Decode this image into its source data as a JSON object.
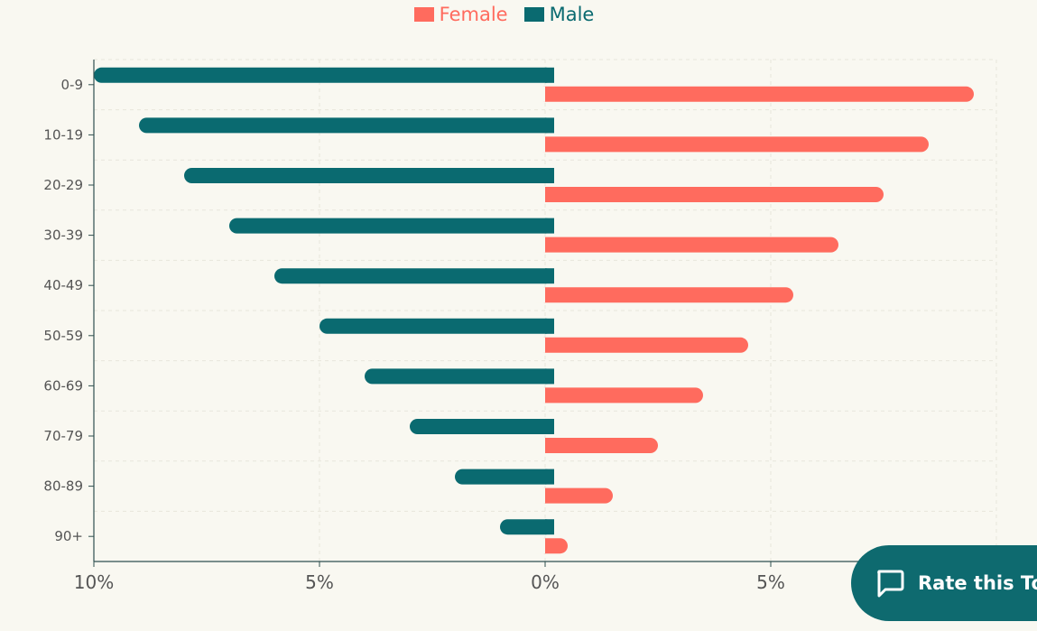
{
  "legend": {
    "female_label": "Female",
    "male_label": "Male"
  },
  "colors": {
    "female": "#ff6b5e",
    "male": "#0a6a70",
    "axis": "#2f4f4f",
    "grid": "#e8e6dc",
    "background": "#f9f8f1"
  },
  "chart_data": {
    "type": "bar",
    "orientation": "horizontal",
    "title": "",
    "xlabel": "",
    "ylabel": "",
    "categories": [
      "0-9",
      "10-19",
      "20-29",
      "30-39",
      "40-49",
      "50-59",
      "60-69",
      "70-79",
      "80-89",
      "90+"
    ],
    "series": [
      {
        "name": "Male",
        "values": [
          10,
          9,
          8,
          7,
          6,
          5,
          4,
          3,
          2,
          1
        ]
      },
      {
        "name": "Female",
        "values": [
          9.5,
          8.5,
          7.5,
          6.5,
          5.5,
          4.5,
          3.5,
          2.5,
          1.5,
          0.5
        ]
      }
    ],
    "x_ticks": [
      "10%",
      "5%",
      "0%",
      "5%"
    ],
    "x_tick_values": [
      -10,
      -5,
      0,
      5
    ],
    "xlim": [
      -10,
      10
    ],
    "unit": "%",
    "grid": true,
    "legend_position": "top-center"
  },
  "feedback": {
    "label": "Rate this Tool",
    "icon": "chat-bubble-icon"
  }
}
